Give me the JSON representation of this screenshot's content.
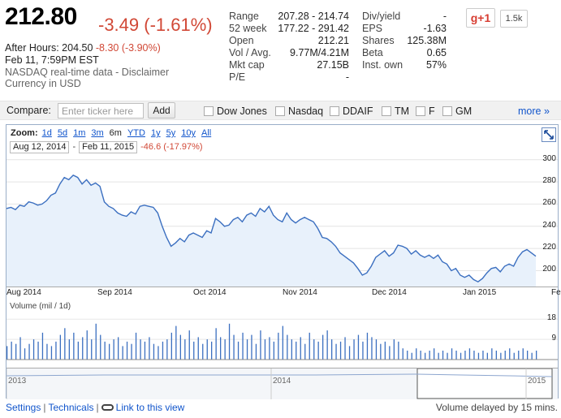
{
  "quote": {
    "price": "212.80",
    "change": "-3.49 (-1.61%)",
    "after_hours_label": "After Hours:",
    "after_hours_price": "204.50",
    "after_hours_change": "-8.30 (-3.90%)",
    "timestamp": "Feb 11, 7:59PM EST",
    "source": "NASDAQ real-time data - Disclaimer",
    "currency": "Currency in USD"
  },
  "stats_left": [
    {
      "label": "Range",
      "value": "207.28 - 214.74"
    },
    {
      "label": "52 week",
      "value": "177.22 - 291.42"
    },
    {
      "label": "Open",
      "value": "212.21"
    },
    {
      "label": "Vol / Avg.",
      "value": "9.77M/4.21M"
    },
    {
      "label": "Mkt cap",
      "value": "27.15B"
    },
    {
      "label": "P/E",
      "value": "-"
    }
  ],
  "stats_right": [
    {
      "label": "Div/yield",
      "value": "-"
    },
    {
      "label": "EPS",
      "value": "-1.63"
    },
    {
      "label": "Shares",
      "value": "125.38M"
    },
    {
      "label": "Beta",
      "value": "0.65"
    },
    {
      "label": "Inst. own",
      "value": "57%"
    }
  ],
  "social": {
    "gplus_label": "g+1",
    "gplus_count": "1.5k"
  },
  "compare": {
    "label": "Compare:",
    "placeholder": "Enter ticker here",
    "add_label": "Add",
    "items": [
      "Dow Jones",
      "Nasdaq",
      "DDAIF",
      "TM",
      "F",
      "GM"
    ],
    "more_label": "more »"
  },
  "chart": {
    "zoom_label": "Zoom:",
    "zoom_options": [
      "1d",
      "5d",
      "1m",
      "3m",
      "6m",
      "YTD",
      "1y",
      "5y",
      "10y",
      "All"
    ],
    "zoom_active": "6m",
    "range_start": "Aug 12, 2014",
    "range_separator": "-",
    "range_end": "Feb 11, 2015",
    "range_change": "-46.6 (-17.97%)",
    "volume_label": "Volume (mil / 1d)",
    "line_color": "#3b6fc0",
    "fill_color": "#e8f1fb"
  },
  "chart_data": {
    "type": "area",
    "y_ticks": [
      "300",
      "280",
      "260",
      "240",
      "220",
      "200"
    ],
    "ylim": [
      185,
      302
    ],
    "x_ticks": [
      "Aug 2014",
      "Sep 2014",
      "Oct 2014",
      "Nov 2014",
      "Dec 2014",
      "Jan 2015",
      "Fe"
    ],
    "price_series": [
      256,
      257,
      255,
      259,
      258,
      262,
      261,
      259,
      260,
      263,
      268,
      270,
      278,
      284,
      282,
      286,
      284,
      278,
      282,
      277,
      279,
      276,
      262,
      258,
      256,
      252,
      250,
      249,
      253,
      251,
      258,
      259,
      258,
      257,
      252,
      240,
      230,
      222,
      225,
      229,
      226,
      232,
      234,
      232,
      230,
      236,
      234,
      247,
      244,
      240,
      241,
      246,
      248,
      244,
      250,
      252,
      249,
      256,
      253,
      258,
      250,
      246,
      244,
      252,
      246,
      243,
      246,
      248,
      246,
      244,
      238,
      230,
      229,
      226,
      222,
      216,
      213,
      210,
      207,
      202,
      196,
      198,
      204,
      212,
      215,
      218,
      213,
      216,
      223,
      222,
      220,
      215,
      218,
      214,
      212,
      214,
      211,
      214,
      208,
      206,
      200,
      202,
      196,
      194,
      196,
      192,
      190,
      193,
      198,
      202,
      203,
      199,
      204,
      206,
      204,
      212,
      217,
      219,
      216,
      213
    ],
    "volume_y_ticks": [
      "18",
      "9"
    ],
    "volume_ylim": [
      0,
      21
    ],
    "volume_series": [
      6,
      8,
      7,
      10,
      5,
      7,
      9,
      8,
      12,
      7,
      6,
      8,
      11,
      14,
      9,
      12,
      8,
      10,
      13,
      9,
      16,
      11,
      8,
      7,
      9,
      10,
      6,
      8,
      7,
      12,
      9,
      8,
      10,
      7,
      6,
      8,
      9,
      12,
      15,
      11,
      9,
      13,
      8,
      10,
      7,
      9,
      8,
      14,
      10,
      9,
      16,
      11,
      8,
      12,
      9,
      11,
      7,
      13,
      9,
      10,
      8,
      12,
      15,
      11,
      9,
      8,
      10,
      7,
      12,
      9,
      8,
      11,
      13,
      9,
      7,
      8,
      10,
      6,
      9,
      11,
      8,
      12,
      10,
      9,
      7,
      8,
      6,
      9,
      8,
      5,
      4,
      3,
      5,
      4,
      3,
      4,
      5,
      3,
      4,
      3,
      5,
      4,
      3,
      4,
      5,
      4,
      3,
      4,
      3,
      5,
      4,
      3,
      4,
      5,
      3,
      4,
      5,
      4,
      3,
      4
    ],
    "nav_ticks": [
      "2013",
      "2014",
      "2015"
    ]
  },
  "footer": {
    "settings": "Settings",
    "technicals": "Technicals",
    "link_to_view": "Link to this view",
    "volume_delay": "Volume delayed by 15 mins."
  }
}
